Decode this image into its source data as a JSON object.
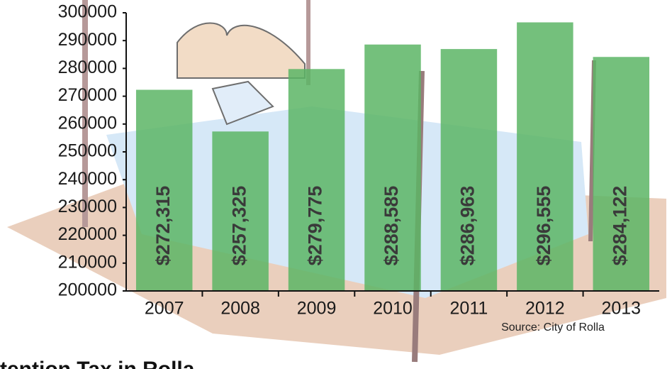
{
  "chart_data": {
    "type": "bar",
    "source": "Source: City of Rolla",
    "caption": "tention Tax in Rolla",
    "categories": [
      "2007",
      "2008",
      "2009",
      "2010",
      "2011",
      "2012",
      "2013"
    ],
    "values": [
      272315,
      257325,
      279775,
      288585,
      286963,
      296555,
      284122
    ],
    "value_labels": [
      "$272,315",
      "$257,325",
      "$279,775",
      "$288,585",
      "$286,963",
      "$296,555",
      "$284,122"
    ],
    "color": "#5cb565",
    "ylim": [
      200000,
      300000
    ],
    "yticks": [
      200000,
      210000,
      220000,
      230000,
      240000,
      250000,
      260000,
      270000,
      280000,
      290000,
      300000
    ],
    "grid": false
  }
}
